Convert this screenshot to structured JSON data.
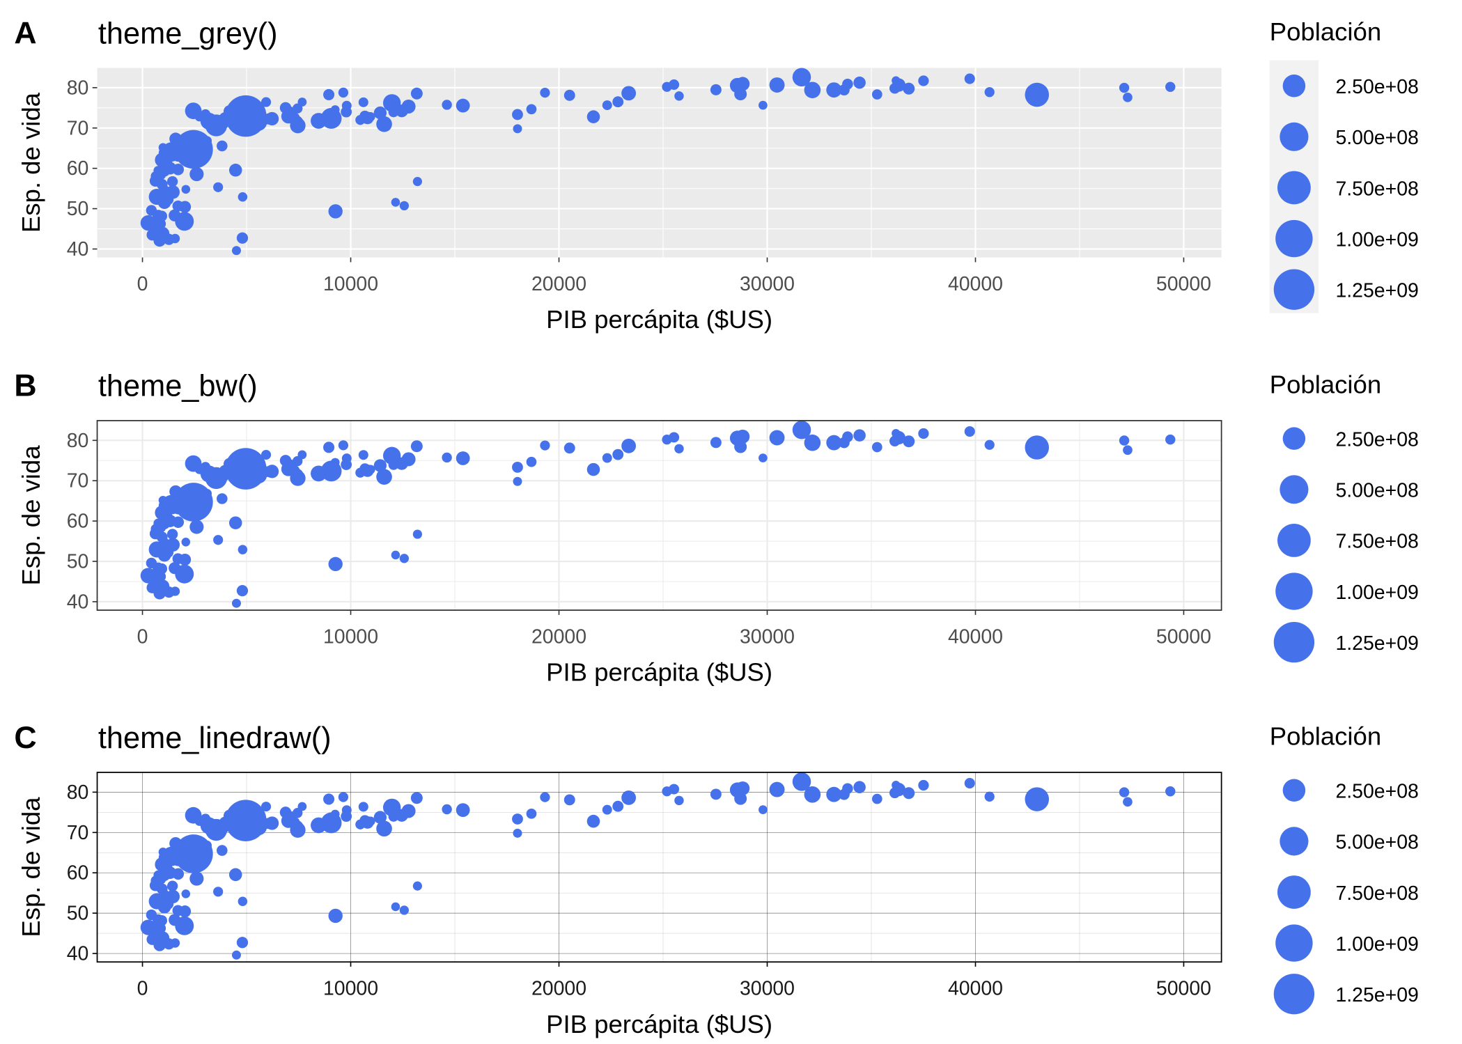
{
  "chart_data": [
    {
      "type": "scatter",
      "tag": "A",
      "title": "theme_grey()",
      "theme": "grey",
      "xlabel": "PIB percápita ($US)",
      "ylabel": "Esp. de vida",
      "xlim": [
        -2174,
        51812
      ],
      "ylim": [
        37.9,
        84.9
      ],
      "xticks": [
        "0",
        "10000",
        "20000",
        "30000",
        "40000",
        "50000"
      ],
      "yticks": [
        "40",
        "50",
        "60",
        "70",
        "80"
      ],
      "grid": true,
      "legend": {
        "title": "Población",
        "position": "right",
        "labels": [
          "2.50e+08",
          "5.00e+08",
          "7.50e+08",
          "1.00e+09",
          "1.25e+09"
        ]
      }
    },
    {
      "type": "scatter",
      "tag": "B",
      "title": "theme_bw()",
      "theme": "bw",
      "xlabel": "PIB percápita ($US)",
      "ylabel": "Esp. de vida",
      "xlim": [
        -2174,
        51812
      ],
      "ylim": [
        37.9,
        84.9
      ],
      "xticks": [
        "0",
        "10000",
        "20000",
        "30000",
        "40000",
        "50000"
      ],
      "yticks": [
        "40",
        "50",
        "60",
        "70",
        "80"
      ],
      "grid": true,
      "legend": {
        "title": "Población",
        "position": "right",
        "labels": [
          "2.50e+08",
          "5.00e+08",
          "7.50e+08",
          "1.00e+09",
          "1.25e+09"
        ]
      }
    },
    {
      "type": "scatter",
      "tag": "C",
      "title": "theme_linedraw()",
      "theme": "linedraw",
      "xlabel": "PIB percápita ($US)",
      "ylabel": "Esp. de vida",
      "xlim": [
        -2174,
        51812
      ],
      "ylim": [
        37.9,
        84.9
      ],
      "xticks": [
        "0",
        "10000",
        "20000",
        "30000",
        "40000",
        "50000"
      ],
      "yticks": [
        "40",
        "50",
        "60",
        "70",
        "80"
      ],
      "grid": true,
      "legend": {
        "title": "Población",
        "position": "right",
        "labels": [
          "2.50e+08",
          "5.00e+08",
          "7.50e+08",
          "1.00e+09",
          "1.25e+09"
        ]
      }
    }
  ],
  "point_color": "#4571EA",
  "legend_breaks": [
    250000000,
    500000000,
    750000000,
    1000000000,
    1250000000
  ],
  "points_fields": [
    "gdp_percap",
    "life_exp",
    "pop_millions"
  ],
  "points": [
    [
      974.6,
      43.83,
      31.9
    ],
    [
      5937,
      76.42,
      3.6
    ],
    [
      6223,
      72.3,
      33.3
    ],
    [
      4797,
      42.73,
      12.4
    ],
    [
      12779,
      75.32,
      40.3
    ],
    [
      34435,
      81.24,
      20.4
    ],
    [
      36126,
      79.83,
      8.2
    ],
    [
      29796,
      75.64,
      0.7
    ],
    [
      1391,
      64.06,
      150.4
    ],
    [
      33693,
      79.44,
      10.4
    ],
    [
      1441,
      56.73,
      8.1
    ],
    [
      3822,
      65.55,
      9.1
    ],
    [
      7446,
      74.85,
      4.6
    ],
    [
      12570,
      50.73,
      1.6
    ],
    [
      9066,
      72.39,
      190
    ],
    [
      10681,
      73.0,
      7.3
    ],
    [
      1217,
      52.3,
      14.3
    ],
    [
      430,
      49.58,
      8.4
    ],
    [
      1714,
      59.72,
      14.1
    ],
    [
      2042,
      50.43,
      17.7
    ],
    [
      36319,
      80.65,
      33.4
    ],
    [
      706,
      44.74,
      4.4
    ],
    [
      1704,
      50.65,
      10.2
    ],
    [
      13172,
      78.55,
      16.3
    ],
    [
      4959,
      72.96,
      1318.7
    ],
    [
      7007,
      72.89,
      44.2
    ],
    [
      986,
      65.15,
      0.7
    ],
    [
      278,
      46.46,
      64.6
    ],
    [
      3633,
      55.32,
      3.8
    ],
    [
      9645,
      78.78,
      4.1
    ],
    [
      1545,
      48.33,
      18.0
    ],
    [
      14619,
      75.75,
      4.5
    ],
    [
      8948,
      78.27,
      11.4
    ],
    [
      22833,
      76.49,
      10.2
    ],
    [
      35278,
      78.33,
      5.5
    ],
    [
      2082,
      54.79,
      0.5
    ],
    [
      6025,
      72.24,
      9.3
    ],
    [
      6873,
      74.99,
      13.8
    ],
    [
      5581,
      71.34,
      80.3
    ],
    [
      5728,
      71.88,
      6.9
    ],
    [
      12154,
      51.58,
      0.55
    ],
    [
      641,
      58.04,
      4.9
    ],
    [
      691,
      52.95,
      76.5
    ],
    [
      33207,
      79.31,
      5.2
    ],
    [
      30470,
      80.66,
      61.1
    ],
    [
      13206,
      56.73,
      1.45
    ],
    [
      753,
      59.45,
      1.7
    ],
    [
      32170,
      79.41,
      82.4
    ],
    [
      1328,
      60.02,
      22.9
    ],
    [
      27538,
      79.48,
      10.7
    ],
    [
      5186,
      70.26,
      12.6
    ],
    [
      943,
      56.01,
      9.9
    ],
    [
      579,
      46.39,
      1.5
    ],
    [
      1202,
      60.92,
      8.5
    ],
    [
      3548,
      70.2,
      7.5
    ],
    [
      39725,
      82.21,
      7.0
    ],
    [
      18009,
      73.34,
      10.0
    ],
    [
      36181,
      81.76,
      0.3
    ],
    [
      2452,
      64.7,
      1110.4
    ],
    [
      3541,
      70.65,
      223.5
    ],
    [
      11606,
      70.96,
      69.5
    ],
    [
      4471,
      59.55,
      27.5
    ],
    [
      40676,
      78.89,
      4.1
    ],
    [
      25523,
      80.75,
      6.4
    ],
    [
      28570,
      80.55,
      58.1
    ],
    [
      7321,
      72.57,
      2.8
    ],
    [
      31656,
      82.6,
      127.5
    ],
    [
      4519,
      72.54,
      6.05
    ],
    [
      1463,
      54.11,
      35.6
    ],
    [
      1593,
      67.3,
      23.3
    ],
    [
      23348,
      78.62,
      49.0
    ],
    [
      47307,
      77.59,
      2.5
    ],
    [
      10461,
      71.99,
      3.9
    ],
    [
      1569,
      42.59,
      2.0
    ],
    [
      415,
      45.68,
      3.2
    ],
    [
      12057,
      73.95,
      6.0
    ],
    [
      1044,
      59.44,
      19.2
    ],
    [
      759,
      48.3,
      13.3
    ],
    [
      12452,
      74.24,
      24.8
    ],
    [
      1042,
      54.47,
      12.0
    ],
    [
      1803,
      64.16,
      3.3
    ],
    [
      10957,
      72.8,
      1.25
    ],
    [
      11978,
      76.2,
      108.7
    ],
    [
      3096,
      66.8,
      2.9
    ],
    [
      9254,
      74.54,
      0.7
    ],
    [
      3820,
      71.16,
      33.8
    ],
    [
      824,
      42.08,
      20.0
    ],
    [
      944,
      62.07,
      47.8
    ],
    [
      4811,
      52.91,
      2.1
    ],
    [
      1091,
      63.79,
      28.9
    ],
    [
      36798,
      79.76,
      16.6
    ],
    [
      25185,
      80.2,
      4.1
    ],
    [
      2749,
      72.9,
      5.7
    ],
    [
      620,
      56.87,
      12.9
    ],
    [
      2014,
      46.86,
      135.0
    ],
    [
      49357,
      80.2,
      4.6
    ],
    [
      22316,
      75.64,
      3.2
    ],
    [
      2606,
      65.48,
      169.3
    ],
    [
      9809,
      75.54,
      3.2
    ],
    [
      4173,
      71.75,
      6.7
    ],
    [
      7409,
      71.42,
      28.7
    ],
    [
      3190,
      71.69,
      91.1
    ],
    [
      15390,
      75.56,
      38.5
    ],
    [
      20510,
      78.1,
      10.6
    ],
    [
      19329,
      78.75,
      3.9
    ],
    [
      7670,
      76.44,
      0.8
    ],
    [
      10808,
      72.48,
      22.3
    ],
    [
      863,
      46.24,
      8.9
    ],
    [
      1598,
      65.53,
      0.2
    ],
    [
      21655,
      72.78,
      27.6
    ],
    [
      1712,
      63.06,
      12.3
    ],
    [
      9787,
      74.0,
      10.2
    ],
    [
      863,
      42.57,
      6.1
    ],
    [
      47143,
      79.97,
      4.6
    ],
    [
      18678,
      74.66,
      5.4
    ],
    [
      25768,
      77.93,
      2.0
    ],
    [
      926,
      48.16,
      9.1
    ],
    [
      9270,
      49.34,
      44.0
    ],
    [
      28821,
      80.94,
      40.4
    ],
    [
      3970,
      72.4,
      20.4
    ],
    [
      2602,
      58.56,
      42.3
    ],
    [
      4513,
      39.61,
      1.1
    ],
    [
      33860,
      80.88,
      9.0
    ],
    [
      37506,
      81.7,
      7.6
    ],
    [
      4185,
      74.14,
      19.3
    ],
    [
      28718,
      78.4,
      23.2
    ],
    [
      1107,
      52.52,
      38.1
    ],
    [
      7458,
      70.62,
      65.1
    ],
    [
      883,
      58.42,
      5.7
    ],
    [
      18009,
      69.82,
      1.06
    ],
    [
      7093,
      73.92,
      10.3
    ],
    [
      8458,
      71.78,
      71.2
    ],
    [
      1056,
      51.54,
      29.2
    ],
    [
      33203,
      79.43,
      60.8
    ],
    [
      42952,
      78.24,
      301.1
    ],
    [
      10611,
      76.38,
      3.4
    ],
    [
      11416,
      73.75,
      26.1
    ],
    [
      2442,
      74.25,
      85.3
    ],
    [
      3025,
      73.42,
      4.0
    ],
    [
      2281,
      62.7,
      22.2
    ],
    [
      1271,
      42.38,
      11.7
    ],
    [
      470,
      43.49,
      12.3
    ]
  ]
}
